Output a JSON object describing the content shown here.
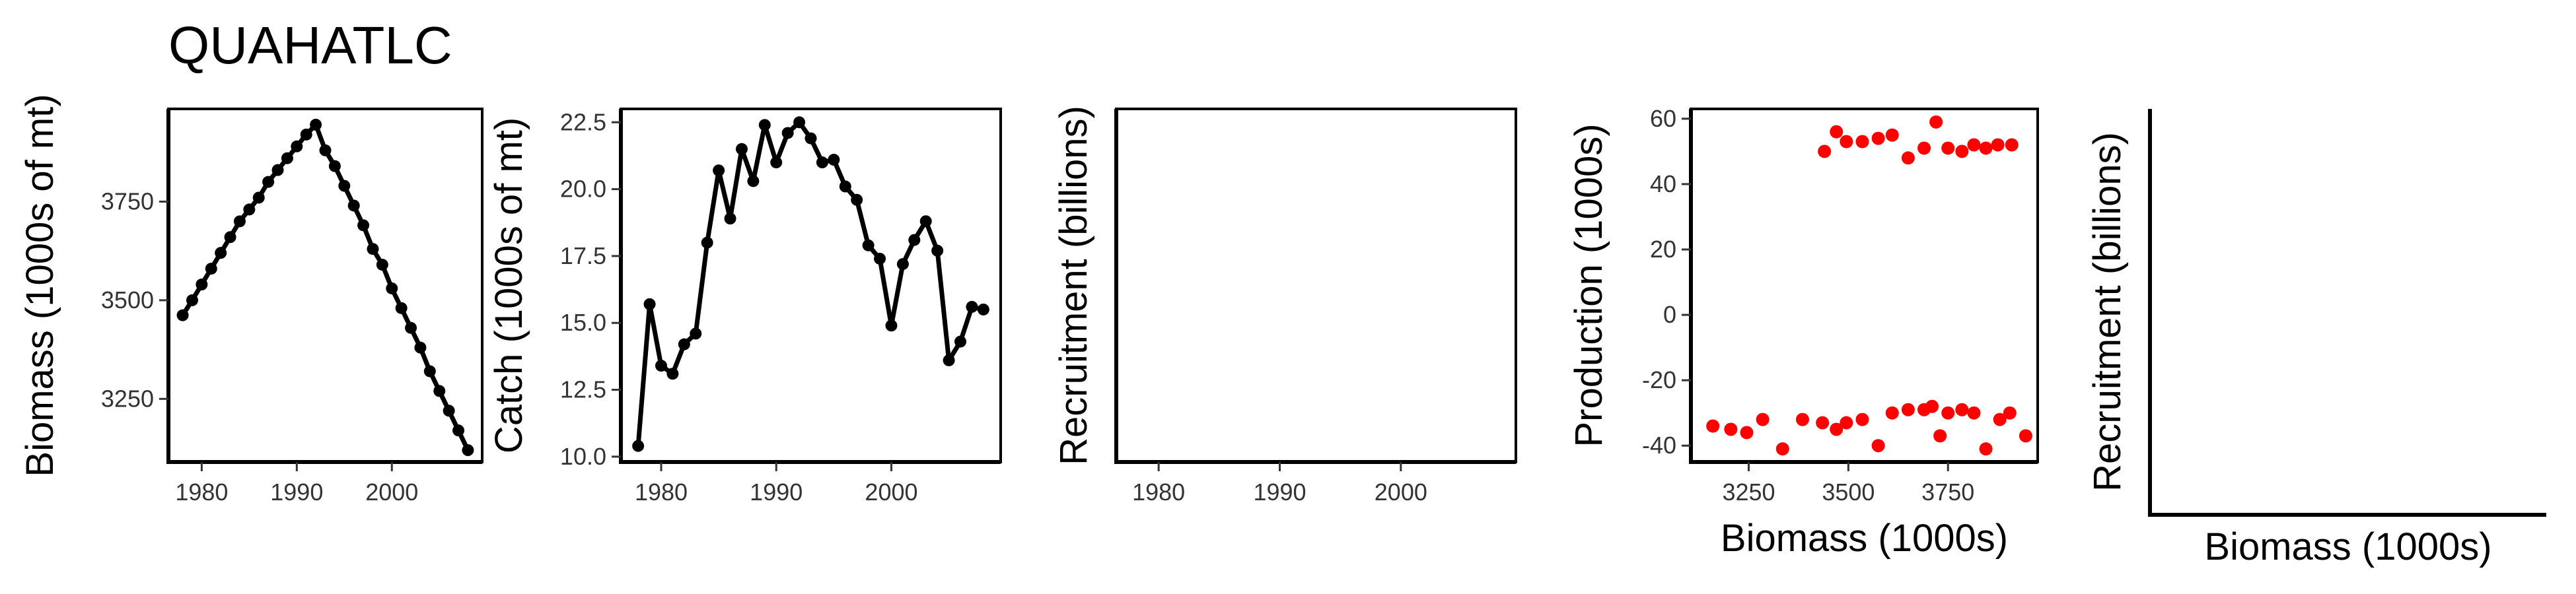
{
  "figure": {
    "title": "QUAHATLC"
  },
  "chart_data": [
    {
      "id": "biomass",
      "type": "line",
      "title": "QUAHATLC",
      "xlabel": "",
      "ylabel": "Biomass (1000s of mt)",
      "xlim": [
        1976.5,
        2009.5
      ],
      "ylim": [
        3090,
        3985
      ],
      "xticks": [
        1980,
        1990,
        2000
      ],
      "xtick_labels": [
        "1980",
        "1990",
        "2000"
      ],
      "yticks": [
        3250,
        3500,
        3750
      ],
      "ytick_labels": [
        "3250",
        "3500",
        "3750"
      ],
      "x": [
        1978,
        1979,
        1980,
        1981,
        1982,
        1983,
        1984,
        1985,
        1986,
        1987,
        1988,
        1989,
        1990,
        1991,
        1992,
        1993,
        1994,
        1995,
        1996,
        1997,
        1998,
        1999,
        2000,
        2001,
        2002,
        2003,
        2004,
        2005,
        2006,
        2007,
        2008
      ],
      "y": [
        3462,
        3500,
        3540,
        3580,
        3620,
        3660,
        3700,
        3730,
        3760,
        3800,
        3830,
        3860,
        3890,
        3920,
        3945,
        3880,
        3840,
        3790,
        3740,
        3690,
        3630,
        3590,
        3530,
        3480,
        3430,
        3380,
        3320,
        3270,
        3220,
        3170,
        3120
      ]
    },
    {
      "id": "catch",
      "type": "line",
      "xlabel": "",
      "ylabel": "Catch (1000s of mt)",
      "xlim": [
        1976.5,
        2009.5
      ],
      "ylim": [
        9.8,
        23.0
      ],
      "xticks": [
        1980,
        1990,
        2000
      ],
      "xtick_labels": [
        "1980",
        "1990",
        "2000"
      ],
      "yticks": [
        10.0,
        12.5,
        15.0,
        17.5,
        20.0,
        22.5
      ],
      "ytick_labels": [
        "10.0",
        "12.5",
        "15.0",
        "17.5",
        "20.0",
        "22.5"
      ],
      "x": [
        1978,
        1979,
        1980,
        1981,
        1982,
        1983,
        1984,
        1985,
        1986,
        1987,
        1988,
        1989,
        1990,
        1991,
        1992,
        1993,
        1994,
        1995,
        1996,
        1997,
        1998,
        1999,
        2000,
        2001,
        2002,
        2003,
        2004,
        2005,
        2006,
        2007,
        2008
      ],
      "y": [
        10.4,
        15.7,
        13.4,
        13.1,
        14.2,
        14.6,
        18.0,
        20.7,
        18.9,
        21.5,
        20.3,
        22.4,
        21.0,
        22.1,
        22.5,
        21.9,
        21.0,
        21.1,
        20.1,
        19.6,
        17.9,
        17.4,
        14.9,
        17.2,
        18.1,
        18.8,
        17.7,
        13.6,
        14.3,
        15.6,
        15.5
      ]
    },
    {
      "id": "recruitment",
      "type": "line",
      "xlabel": "",
      "ylabel": "Recruitment (billions)",
      "xlim": [
        1976.5,
        2009.5
      ],
      "xticks": [
        1980,
        1990,
        2000
      ],
      "xtick_labels": [
        "1980",
        "1990",
        "2000"
      ],
      "x": [],
      "y": []
    },
    {
      "id": "production",
      "type": "scatter",
      "xlabel": "Biomass (1000s)",
      "ylabel": "Production (1000s)",
      "xlim": [
        3105,
        3975
      ],
      "ylim": [
        -45,
        63
      ],
      "xticks": [
        3250,
        3500,
        3750
      ],
      "xtick_labels": [
        "3250",
        "3500",
        "3750"
      ],
      "yticks": [
        -40,
        -20,
        0,
        20,
        40,
        60
      ],
      "ytick_labels": [
        "-40",
        "-20",
        "0",
        "20",
        "40",
        "60"
      ],
      "color": "#ff0000",
      "x": [
        3160,
        3205,
        3245,
        3285,
        3335,
        3385,
        3435,
        3470,
        3495,
        3535,
        3575,
        3610,
        3650,
        3690,
        3710,
        3730,
        3750,
        3785,
        3815,
        3845,
        3880,
        3905,
        3945,
        3440,
        3470,
        3495,
        3535,
        3575,
        3610,
        3650,
        3690,
        3720,
        3750,
        3785,
        3815,
        3845,
        3875,
        3910
      ],
      "y": [
        -34,
        -35,
        -36,
        -32,
        -41,
        -32,
        -33,
        -35,
        -33,
        -32,
        -40,
        -30,
        -29,
        -29,
        -28,
        -37,
        -30,
        -29,
        -30,
        -41,
        -32,
        -30,
        -37,
        50,
        56,
        53,
        53,
        54,
        55,
        48,
        51,
        59,
        51,
        50,
        52,
        51,
        52,
        52
      ]
    },
    {
      "id": "stock-recruitment",
      "type": "scatter",
      "xlabel": "Biomass (1000s)",
      "ylabel": "Recruitment (billions)",
      "x": [],
      "y": []
    }
  ]
}
